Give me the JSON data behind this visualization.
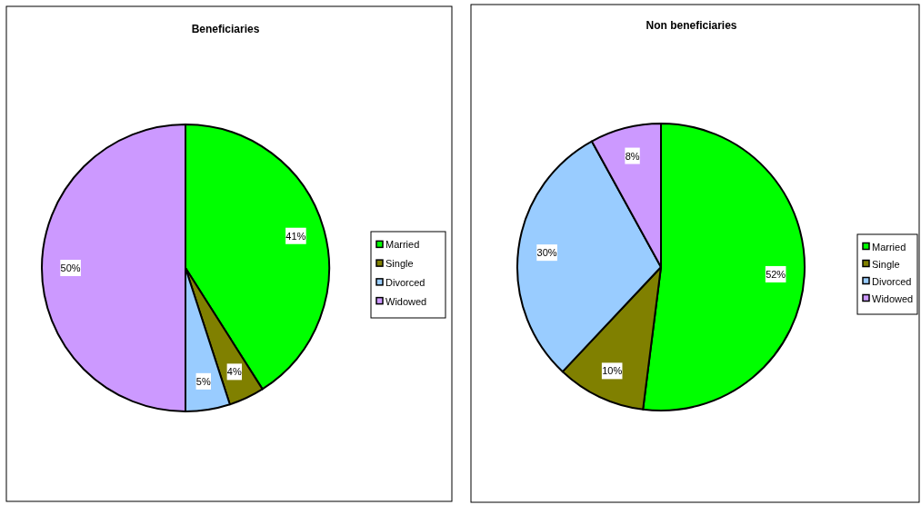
{
  "chart_data": [
    {
      "type": "pie",
      "title": "Beneficiaries",
      "categories": [
        "Married",
        "Single",
        "Divorced",
        "Widowed"
      ],
      "values": [
        41,
        4,
        5,
        50
      ],
      "colors": [
        "#00ff00",
        "#808000",
        "#99ccff",
        "#cc99ff"
      ],
      "value_labels": [
        "41%",
        "4%",
        "5%",
        "50%"
      ],
      "legend": "right"
    },
    {
      "type": "pie",
      "title": "Non beneficiaries",
      "categories": [
        "Married",
        "Single",
        "Divorced",
        "Widowed"
      ],
      "values": [
        52,
        10,
        30,
        8
      ],
      "colors": [
        "#00ff00",
        "#808000",
        "#99ccff",
        "#cc99ff"
      ],
      "value_labels": [
        "52%",
        "10%",
        "30%",
        "8%"
      ],
      "legend": "right"
    }
  ]
}
